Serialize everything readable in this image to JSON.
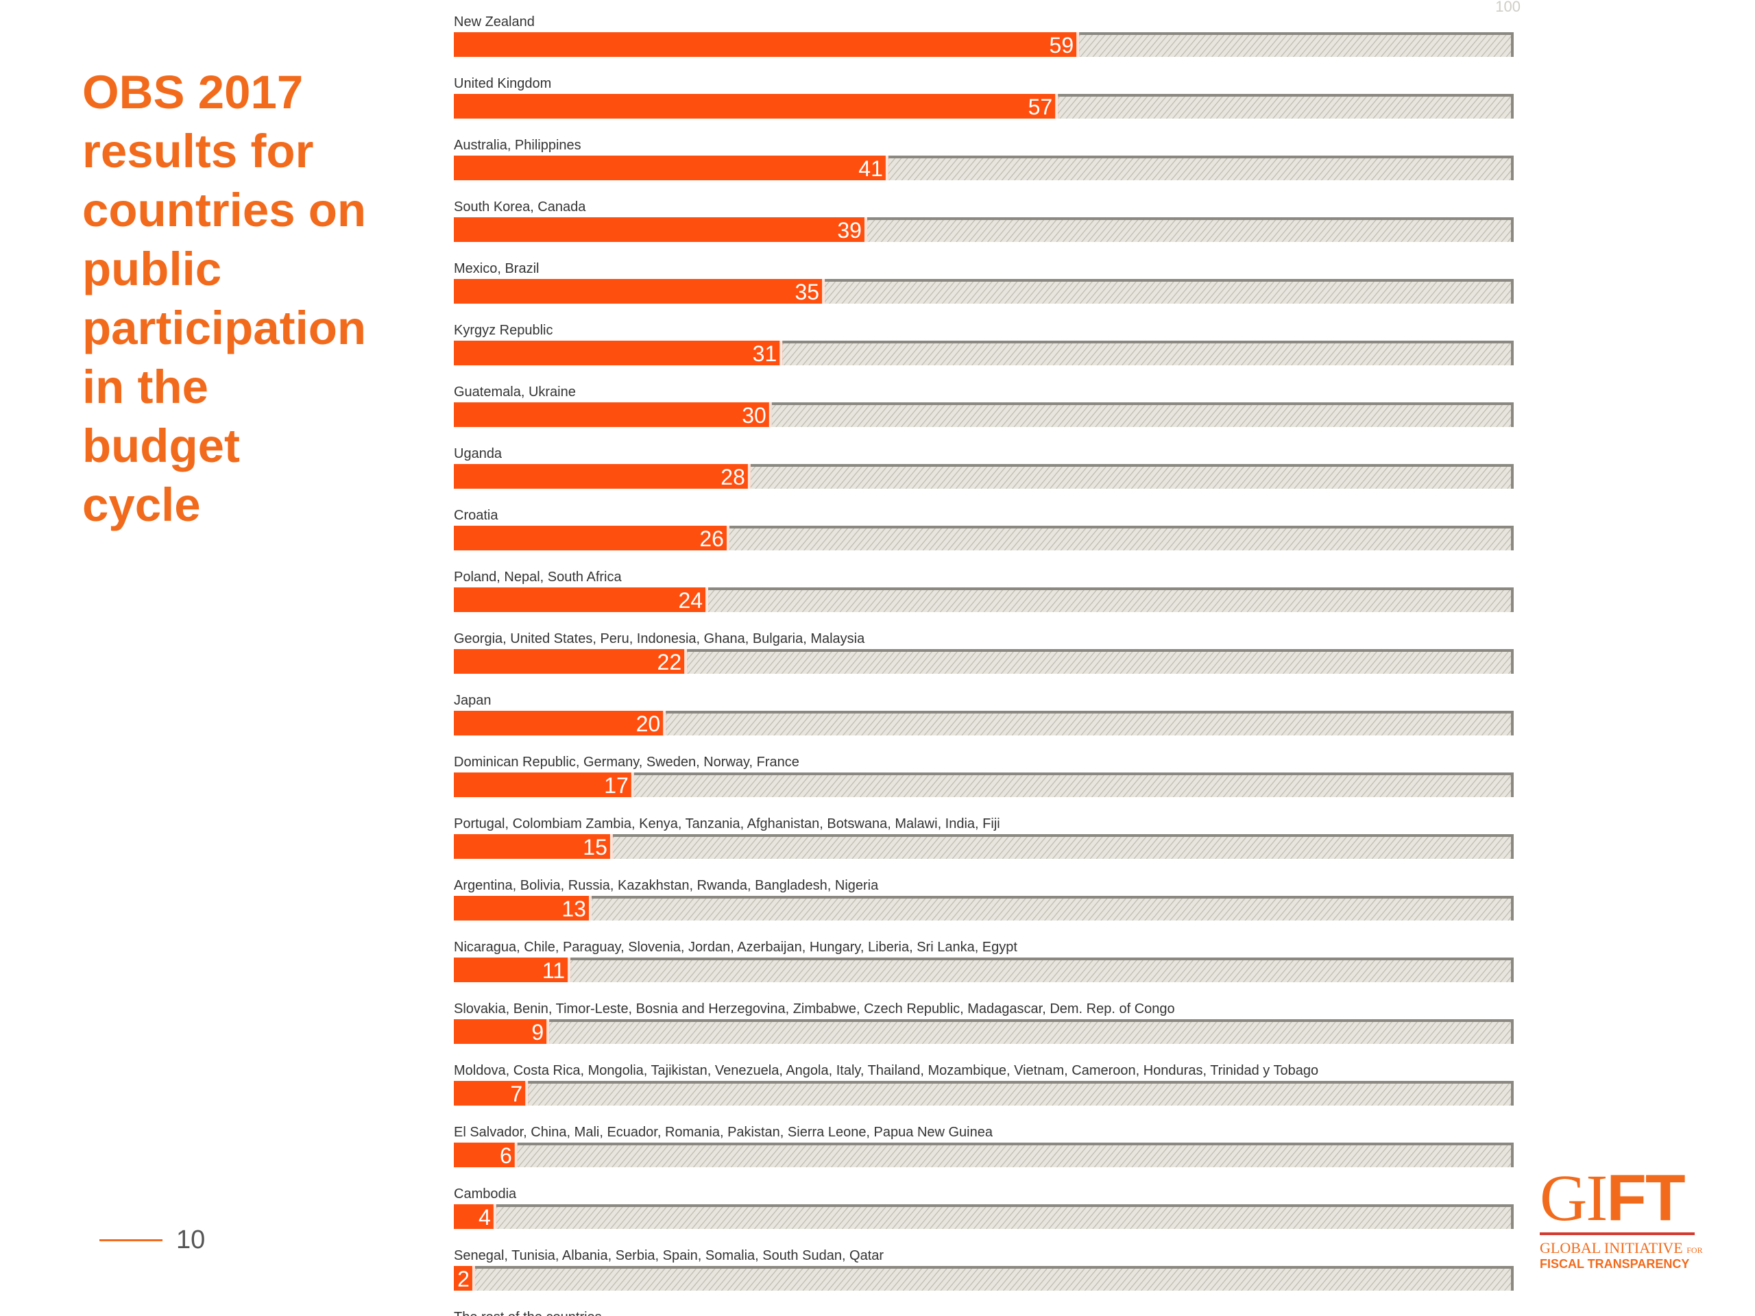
{
  "slide": {
    "title_lines": [
      "OBS 2017",
      "results for",
      "countries on",
      "public",
      "participation",
      "in the",
      "budget",
      "cycle"
    ],
    "page_number": "10"
  },
  "logo": {
    "mark_g": "GI",
    "mark_ft": "FT",
    "line1": "GLOBAL INITIATIVE",
    "line1_small": "FOR",
    "line2": "FISCAL TRANSPARENCY"
  },
  "colors": {
    "bar": "#ff4f0f",
    "track": "#e7e5dd",
    "track_hatch": "#b9b6ab",
    "track_shadow": "#8a8880",
    "title": "#f26a1b"
  },
  "chart_data": {
    "type": "bar",
    "orientation": "horizontal",
    "xlim": [
      0,
      100
    ],
    "max_label": "100",
    "categories": [
      "New Zealand",
      "United Kingdom",
      "Australia, Philippines",
      "South Korea, Canada",
      "Mexico, Brazil",
      "Kyrgyz Republic",
      "Guatemala, Ukraine",
      "Uganda",
      "Croatia",
      "Poland, Nepal, South Africa",
      "Georgia, United States, Peru, Indonesia, Ghana, Bulgaria, Malaysia",
      "Japan",
      "Dominican Republic, Germany, Sweden, Norway, France",
      "Portugal, Colombiam Zambia, Kenya, Tanzania, Afghanistan, Botswana, Malawi, India, Fiji",
      "Argentina, Bolivia, Russia, Kazakhstan, Rwanda, Bangladesh, Nigeria",
      "Nicaragua, Chile, Paraguay, Slovenia, Jordan, Azerbaijan, Hungary, Liberia, Sri Lanka, Egypt",
      "Slovakia, Benin, Timor-Leste, Bosnia and Herzegovina, Zimbabwe, Czech Republic, Madagascar, Dem. Rep. of Congo",
      "Moldova, Costa Rica, Mongolia, Tajikistan, Venezuela, Angola, Italy, Thailand, Mozambique, Vietnam, Cameroon, Honduras, Trinidad y Tobago",
      "El Salvador, China, Mali, Ecuador, Romania, Pakistan, Sierra Leone, Papua New Guinea",
      "Cambodia",
      "Senegal, Tunisia, Albania, Serbia, Spain, Somalia, South Sudan, Qatar",
      "The rest of the countries"
    ],
    "values": [
      59,
      57,
      41,
      39,
      35,
      31,
      30,
      28,
      26,
      24,
      22,
      20,
      17,
      15,
      13,
      11,
      9,
      7,
      6,
      4,
      2,
      null
    ]
  }
}
